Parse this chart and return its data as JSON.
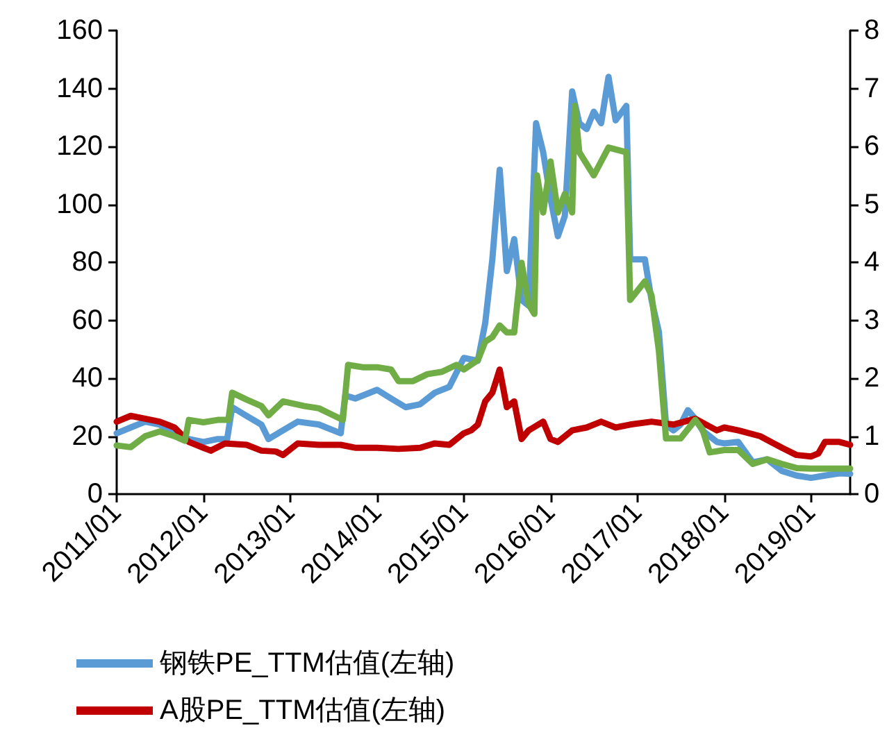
{
  "chart_data": {
    "type": "line",
    "marker": "none",
    "line_style": "solid",
    "grid": false,
    "legend": "bottom",
    "xlim": [
      "2011-01-01",
      "2019-06-15"
    ],
    "xticks": [
      {
        "value": "2011-01-01",
        "label": "2011/01"
      },
      {
        "value": "2012-01-01",
        "label": "2012/01"
      },
      {
        "value": "2013-01-01",
        "label": "2013/01"
      },
      {
        "value": "2014-01-01",
        "label": "2014/01"
      },
      {
        "value": "2015-01-01",
        "label": "2015/01"
      },
      {
        "value": "2016-01-01",
        "label": "2016/01"
      },
      {
        "value": "2017-01-01",
        "label": "2017/01"
      },
      {
        "value": "2018-01-01",
        "label": "2018/01"
      },
      {
        "value": "2019-01-01",
        "label": "2019/01"
      }
    ],
    "ylim": [
      0,
      160
    ],
    "yticks": [
      0,
      20,
      40,
      60,
      80,
      100,
      120,
      140,
      160
    ],
    "y2lim": [
      0,
      8
    ],
    "y2ticks": [
      0,
      1,
      2,
      3,
      4,
      5,
      6,
      7,
      8
    ],
    "series": [
      {
        "name": "钢铁PE_TTM估值(左轴)",
        "color": "#5b9bd5",
        "x": [
          "2011-01-01",
          "2011-03-01",
          "2011-05-01",
          "2011-07-01",
          "2011-09-01",
          "2011-11-01",
          "2012-01-01",
          "2012-03-01",
          "2012-04-10",
          "2012-05-01",
          "2012-07-01",
          "2012-09-01",
          "2012-10-01",
          "2012-12-01",
          "2013-02-01",
          "2013-05-01",
          "2013-08-01",
          "2013-08-20",
          "2013-10-01",
          "2014-01-01",
          "2014-03-01",
          "2014-05-01",
          "2014-07-01",
          "2014-09-01",
          "2014-11-01",
          "2015-01-01",
          "2015-03-01",
          "2015-04-01",
          "2015-05-01",
          "2015-06-01",
          "2015-07-01",
          "2015-08-01",
          "2015-09-01",
          "2015-10-01",
          "2015-11-01",
          "2015-12-01",
          "2016-01-01",
          "2016-02-01",
          "2016-03-01",
          "2016-04-01",
          "2016-05-01",
          "2016-06-01",
          "2016-07-01",
          "2016-08-01",
          "2016-09-01",
          "2016-10-01",
          "2016-11-15",
          "2016-12-01",
          "2017-01-01",
          "2017-02-01",
          "2017-03-01",
          "2017-04-01",
          "2017-05-01",
          "2017-06-01",
          "2017-07-01",
          "2017-08-01",
          "2017-09-01",
          "2017-10-01",
          "2017-12-01",
          "2018-01-01",
          "2018-03-01",
          "2018-05-01",
          "2018-07-01",
          "2018-09-01",
          "2018-11-01",
          "2019-01-01",
          "2019-03-01",
          "2019-05-01",
          "2019-06-15"
        ],
        "values": [
          21,
          23,
          25,
          24,
          21,
          19,
          18,
          19,
          19,
          30,
          27,
          24,
          19,
          22,
          25,
          24,
          21,
          34,
          33,
          36,
          33,
          30,
          31,
          35,
          37,
          47,
          46,
          59,
          81,
          112,
          77,
          88,
          67,
          65,
          128,
          118,
          102,
          89,
          96,
          139,
          128,
          126,
          132,
          128,
          144,
          129,
          134,
          81,
          81,
          81,
          67,
          56,
          24,
          22,
          24,
          29,
          26,
          22,
          18,
          17.5,
          18,
          11,
          12,
          8,
          6.4,
          5.6,
          6.4,
          7.2,
          7
        ]
      },
      {
        "name": "A股PE_TTM估值(左轴)",
        "color": "#c00000",
        "x": [
          "2011-01-01",
          "2011-03-01",
          "2011-05-01",
          "2011-07-01",
          "2011-09-01",
          "2011-11-01",
          "2012-01-01",
          "2012-02-01",
          "2012-04-01",
          "2012-07-01",
          "2012-09-01",
          "2012-11-01",
          "2012-12-01",
          "2013-02-01",
          "2013-05-01",
          "2013-08-01",
          "2013-10-01",
          "2014-01-01",
          "2014-04-01",
          "2014-07-01",
          "2014-09-01",
          "2014-11-01",
          "2015-01-01",
          "2015-02-01",
          "2015-03-01",
          "2015-04-01",
          "2015-05-01",
          "2015-06-01",
          "2015-07-01",
          "2015-08-01",
          "2015-09-01",
          "2015-10-01",
          "2015-12-01",
          "2016-01-01",
          "2016-02-01",
          "2016-04-01",
          "2016-06-01",
          "2016-08-01",
          "2016-10-01",
          "2016-12-01",
          "2017-03-01",
          "2017-06-01",
          "2017-09-01",
          "2017-12-01",
          "2018-01-01",
          "2018-03-01",
          "2018-06-01",
          "2018-09-01",
          "2018-11-01",
          "2019-01-01",
          "2019-02-01",
          "2019-03-01",
          "2019-05-01",
          "2019-06-15"
        ],
        "values": [
          25,
          27,
          26,
          25,
          23,
          18,
          16,
          15,
          17.5,
          17,
          15,
          14.7,
          13.5,
          17.5,
          17,
          17,
          16,
          16,
          15.6,
          16,
          17.5,
          17,
          21,
          22,
          24,
          32,
          35,
          43,
          30,
          32,
          19,
          22,
          25,
          19,
          18,
          22,
          23,
          25,
          23,
          24,
          25,
          24,
          26,
          22,
          23,
          22,
          20,
          16,
          13.5,
          13,
          14,
          18,
          18,
          17
        ]
      },
      {
        "axis": "y2",
        "color": "#70ad47",
        "x": [
          "2011-01-01",
          "2011-03-01",
          "2011-05-01",
          "2011-07-01",
          "2011-09-01",
          "2011-10-15",
          "2011-11-01",
          "2012-01-01",
          "2012-03-01",
          "2012-04-15",
          "2012-05-01",
          "2012-07-01",
          "2012-09-01",
          "2012-10-01",
          "2012-12-01",
          "2013-03-01",
          "2013-05-01",
          "2013-07-01",
          "2013-08-10",
          "2013-09-01",
          "2013-11-01",
          "2014-01-01",
          "2014-03-01",
          "2014-04-01",
          "2014-06-01",
          "2014-08-01",
          "2014-10-01",
          "2014-12-01",
          "2015-01-01",
          "2015-03-01",
          "2015-04-01",
          "2015-05-01",
          "2015-06-01",
          "2015-07-01",
          "2015-08-01",
          "2015-09-01",
          "2015-10-01",
          "2015-10-25",
          "2015-11-05",
          "2015-12-01",
          "2016-01-01",
          "2016-02-01",
          "2016-03-01",
          "2016-04-01",
          "2016-04-12",
          "2016-05-01",
          "2016-07-01",
          "2016-09-01",
          "2016-11-15",
          "2016-12-01",
          "2017-02-01",
          "2017-03-01",
          "2017-04-01",
          "2017-05-01",
          "2017-07-01",
          "2017-09-01",
          "2017-10-01",
          "2017-11-01",
          "2018-01-01",
          "2018-03-01",
          "2018-05-01",
          "2018-07-01",
          "2018-09-01",
          "2018-11-01",
          "2019-01-01",
          "2019-03-01",
          "2019-06-15"
        ],
        "values": [
          0.84,
          0.81,
          1.0,
          1.08,
          1.0,
          0.92,
          1.28,
          1.24,
          1.28,
          1.28,
          1.75,
          1.63,
          1.52,
          1.36,
          1.6,
          1.52,
          1.48,
          1.36,
          1.28,
          2.23,
          2.19,
          2.19,
          2.15,
          1.95,
          1.95,
          2.07,
          2.11,
          2.23,
          2.15,
          2.31,
          2.63,
          2.71,
          2.91,
          2.79,
          2.79,
          3.99,
          3.27,
          3.11,
          5.5,
          4.86,
          5.74,
          4.86,
          5.18,
          4.86,
          6.7,
          5.9,
          5.5,
          5.98,
          5.9,
          3.35,
          3.67,
          3.43,
          2.47,
          0.96,
          0.96,
          1.28,
          1.12,
          0.72,
          0.76,
          0.76,
          0.52,
          0.6,
          0.52,
          0.45,
          0.44,
          0.44,
          0.44
        ]
      }
    ]
  }
}
